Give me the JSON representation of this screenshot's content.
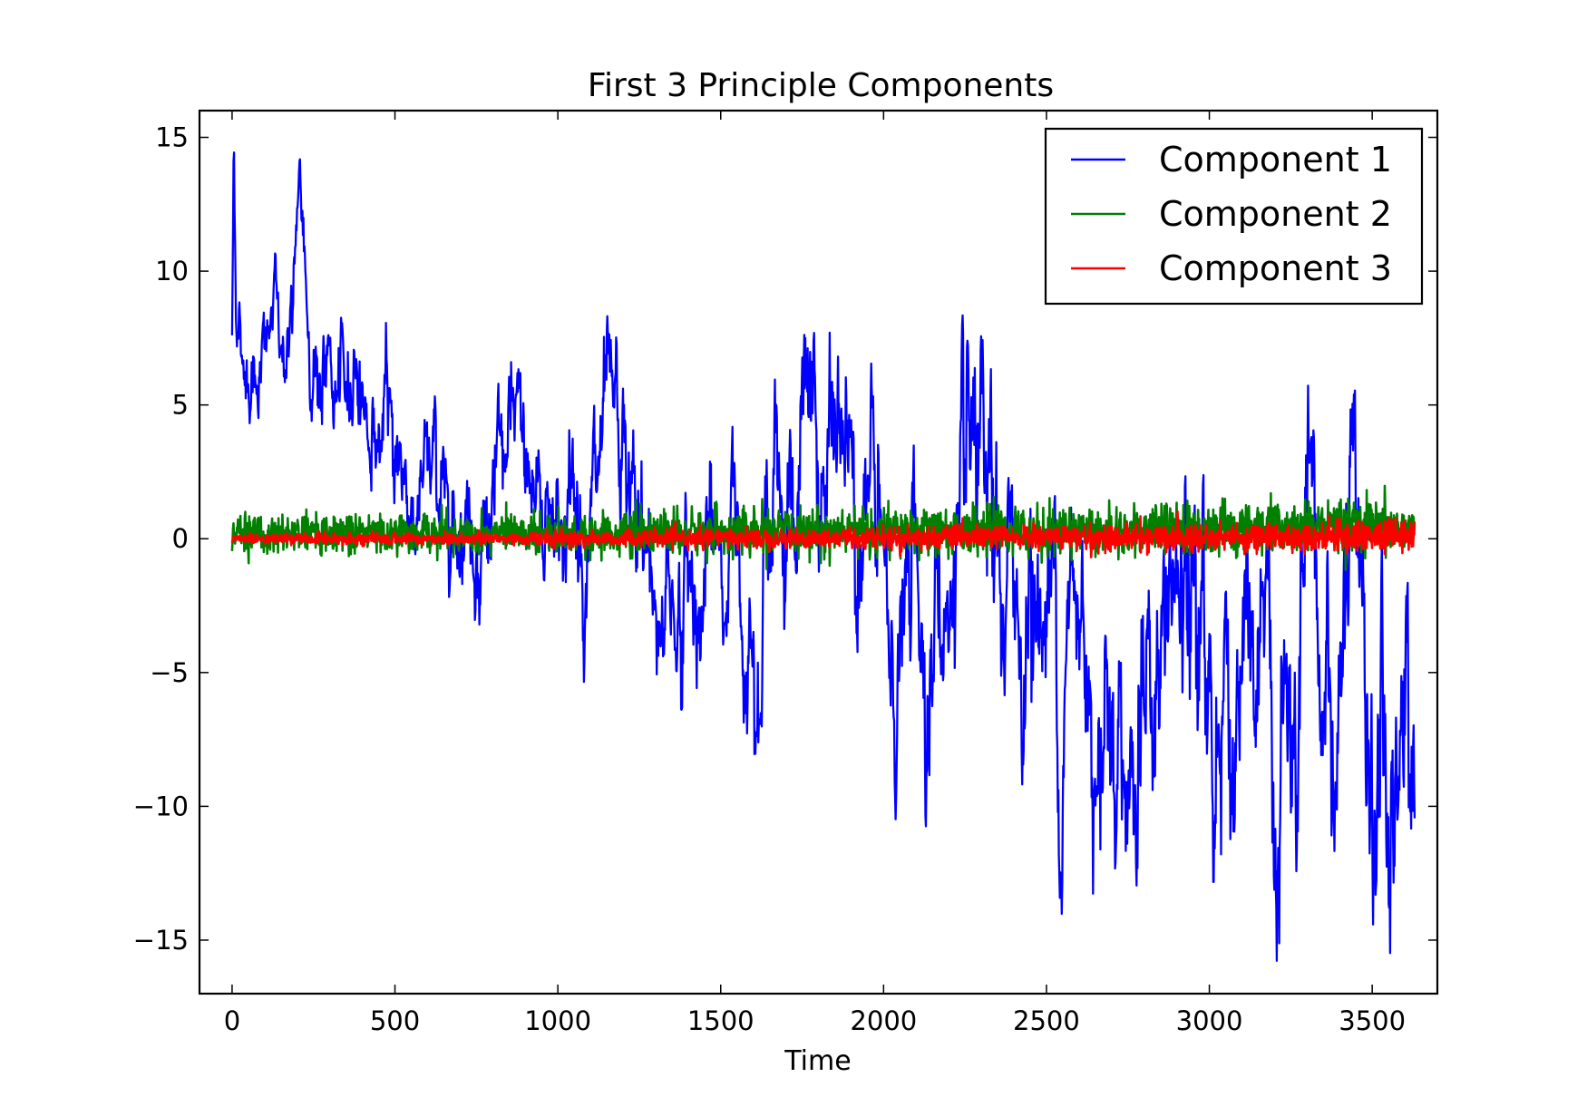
{
  "chart_data": {
    "type": "line",
    "title": "First 3 Principle Components",
    "xlabel": "Time",
    "ylabel": "",
    "xlim": [
      -100,
      3700
    ],
    "ylim": [
      -17,
      16
    ],
    "x_ticks": [
      0,
      500,
      1000,
      1500,
      2000,
      2500,
      3000,
      3500
    ],
    "x_tick_labels": [
      "0",
      "500",
      "1000",
      "1500",
      "2000",
      "2500",
      "3000",
      "3500"
    ],
    "y_ticks": [
      15,
      10,
      5,
      0,
      -5,
      -10,
      -15
    ],
    "y_tick_labels": [
      "15",
      "10",
      "5",
      "0",
      "−5",
      "−10",
      "−15"
    ],
    "grid": false,
    "legend_position": "top-right",
    "x_range": [
      0,
      3630
    ],
    "series": [
      {
        "name": "Component 1",
        "color": "#0000ff",
        "anchors": [
          [
            0,
            7.5
          ],
          [
            5,
            14.8
          ],
          [
            15,
            8.5
          ],
          [
            40,
            6.5
          ],
          [
            70,
            7.2
          ],
          [
            100,
            6.8
          ],
          [
            130,
            8.3
          ],
          [
            160,
            7.0
          ],
          [
            190,
            8.8
          ],
          [
            210,
            11.8
          ],
          [
            230,
            8.5
          ],
          [
            260,
            6.5
          ],
          [
            290,
            6.2
          ],
          [
            320,
            5.0
          ],
          [
            350,
            4.2
          ],
          [
            380,
            7.5
          ],
          [
            420,
            4.5
          ],
          [
            460,
            3.8
          ],
          [
            500,
            3.5
          ],
          [
            540,
            2.0
          ],
          [
            580,
            1.5
          ],
          [
            620,
            2.5
          ],
          [
            660,
            1.8
          ],
          [
            700,
            2.5
          ],
          [
            740,
            1.2
          ],
          [
            780,
            0.5
          ],
          [
            820,
            1.5
          ],
          [
            860,
            2.5
          ],
          [
            900,
            3.0
          ],
          [
            940,
            1.5
          ],
          [
            980,
            1.8
          ],
          [
            1020,
            1.5
          ],
          [
            1060,
            1.0
          ],
          [
            1100,
            0.8
          ],
          [
            1140,
            1.5
          ],
          [
            1180,
            1.2
          ],
          [
            1220,
            0.8
          ],
          [
            1260,
            -1.5
          ],
          [
            1300,
            -2.0
          ],
          [
            1340,
            -1.0
          ],
          [
            1380,
            -2.5
          ],
          [
            1420,
            -1.5
          ],
          [
            1460,
            -2.0
          ],
          [
            1500,
            -1.0
          ],
          [
            1540,
            -0.5
          ],
          [
            1580,
            -1.5
          ],
          [
            1620,
            0.8
          ],
          [
            1660,
            1.5
          ],
          [
            1700,
            2.5
          ],
          [
            1740,
            3.0
          ],
          [
            1780,
            2.5
          ],
          [
            1820,
            1.5
          ],
          [
            1860,
            2.8
          ],
          [
            1900,
            3.5
          ],
          [
            1940,
            3.0
          ],
          [
            1970,
            1.0
          ],
          [
            2000,
            -4.0
          ],
          [
            2030,
            -5.5
          ],
          [
            2060,
            -3.0
          ],
          [
            2100,
            -2.5
          ],
          [
            2150,
            -3.5
          ],
          [
            2200,
            -2.5
          ],
          [
            2250,
            -2.0
          ],
          [
            2300,
            -1.5
          ],
          [
            2350,
            -2.5
          ],
          [
            2400,
            -3.0
          ],
          [
            2450,
            -2.0
          ],
          [
            2500,
            -3.0
          ],
          [
            2550,
            -3.5
          ],
          [
            2600,
            -4.5
          ],
          [
            2650,
            -4.0
          ],
          [
            2700,
            -4.5
          ],
          [
            2750,
            -6.5
          ],
          [
            2800,
            -7.5
          ],
          [
            2850,
            -5.0
          ],
          [
            2900,
            -4.0
          ],
          [
            2950,
            -5.0
          ],
          [
            3000,
            -5.5
          ],
          [
            3050,
            -5.0
          ],
          [
            3100,
            -5.5
          ],
          [
            3150,
            -8.5
          ],
          [
            3200,
            -8.0
          ],
          [
            3250,
            -9.5
          ],
          [
            3300,
            -8.5
          ],
          [
            3350,
            -8.0
          ],
          [
            3400,
            -6.5
          ],
          [
            3430,
            -3.0
          ],
          [
            3460,
            -6.0
          ],
          [
            3500,
            -8.5
          ],
          [
            3550,
            -11.0
          ],
          [
            3580,
            -9.5
          ],
          [
            3610,
            -9.0
          ],
          [
            3630,
            -4.0
          ]
        ]
      },
      {
        "name": "Component 2",
        "color": "#008000",
        "anchors": [
          [
            0,
            0.2
          ],
          [
            1000,
            0.2
          ],
          [
            2000,
            0.25
          ],
          [
            3000,
            0.35
          ],
          [
            3630,
            0.4
          ]
        ]
      },
      {
        "name": "Component 3",
        "color": "#ff0000",
        "anchors": [
          [
            0,
            0.0
          ],
          [
            1000,
            0.0
          ],
          [
            2000,
            0.05
          ],
          [
            3000,
            0.05
          ],
          [
            3630,
            0.1
          ]
        ]
      }
    ]
  }
}
